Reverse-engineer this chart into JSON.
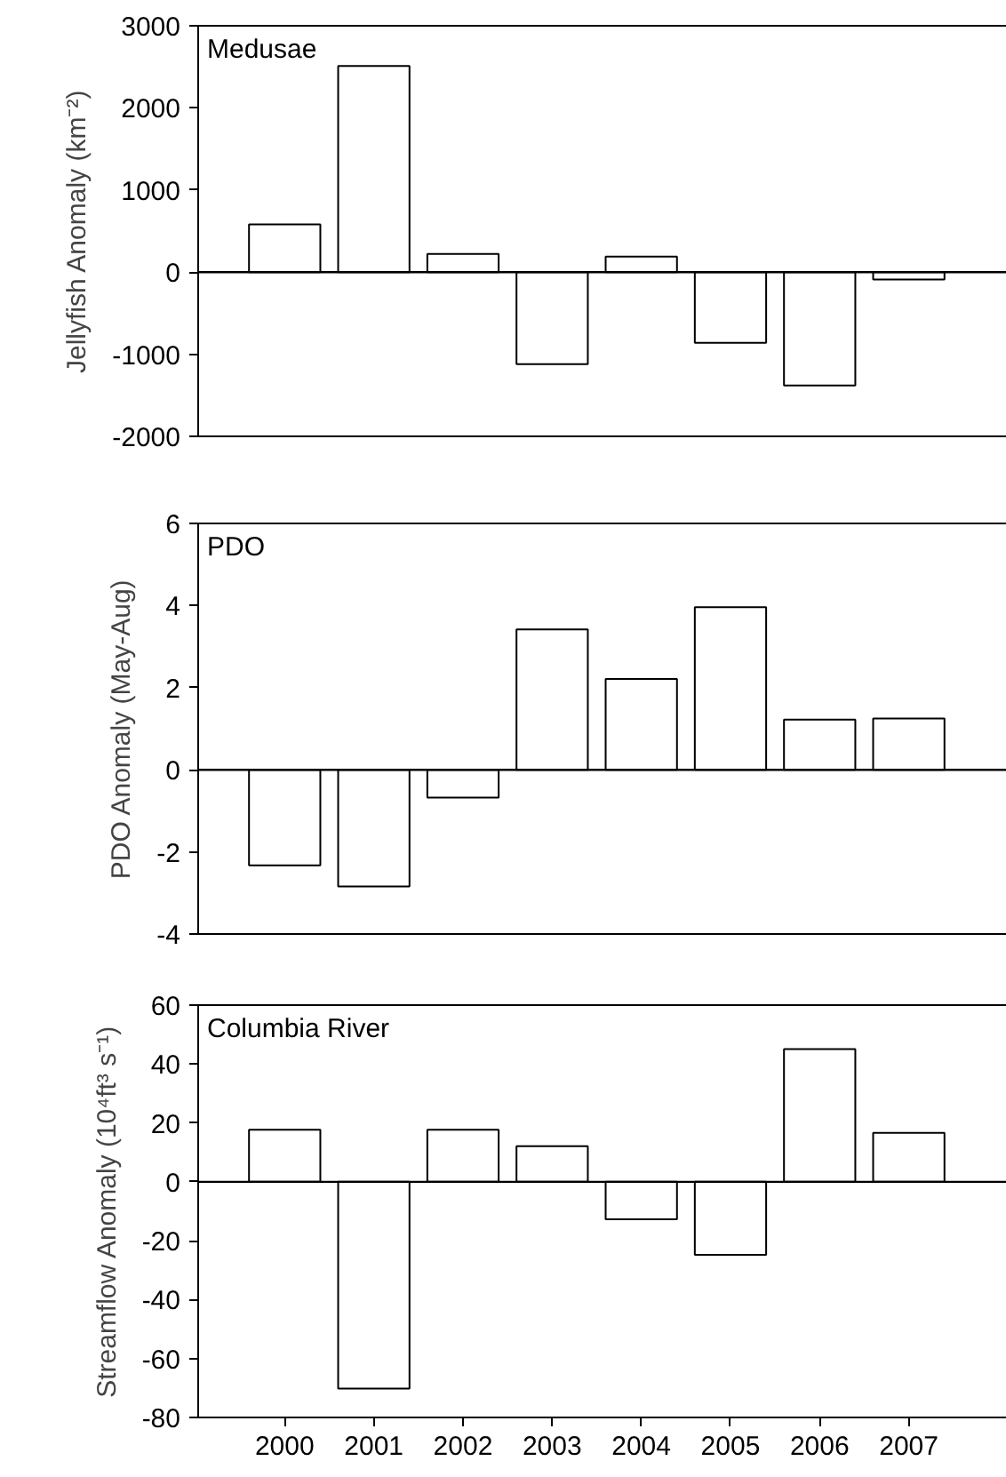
{
  "chart_data": [
    {
      "type": "bar",
      "title": "Medusae",
      "ylabel": "Jellyfish Anomaly (km⁻²)",
      "categories": [
        "2000",
        "2001",
        "2002",
        "2003",
        "2004",
        "2005",
        "2006",
        "2007"
      ],
      "values": [
        580,
        2510,
        220,
        -1120,
        190,
        -860,
        -1380,
        -90
      ],
      "color": "#ffffff",
      "ylim": [
        -2000,
        3000
      ],
      "yticks": [
        -2000,
        -1000,
        0,
        1000,
        2000,
        3000
      ],
      "tick_labels": "y",
      "grid": false,
      "ref_lines": [
        {
          "axis": "y",
          "value": 0
        }
      ]
    },
    {
      "type": "bar",
      "title": "PDO",
      "ylabel": "PDO Anomaly (May-Aug)",
      "categories": [
        "2000",
        "2001",
        "2002",
        "2003",
        "2004",
        "2005",
        "2006",
        "2007"
      ],
      "values": [
        -2.33,
        -2.84,
        -0.68,
        3.42,
        2.21,
        3.96,
        1.22,
        1.25
      ],
      "color": "#ffffff",
      "ylim": [
        -4,
        6
      ],
      "yticks": [
        -4,
        -2,
        0,
        2,
        4,
        6
      ],
      "tick_labels": "y",
      "grid": false,
      "ref_lines": [
        {
          "axis": "y",
          "value": 0
        }
      ]
    },
    {
      "type": "bar",
      "title": "Columbia River",
      "ylabel": "Streamflow Anomaly (10⁴ft³ s⁻¹)",
      "categories": [
        "2000",
        "2001",
        "2002",
        "2003",
        "2004",
        "2005",
        "2006",
        "2007"
      ],
      "values": [
        17.7,
        -70.2,
        17.7,
        12.1,
        -12.7,
        -24.8,
        45.1,
        16.6
      ],
      "color": "#ffffff",
      "ylim": [
        -80,
        60
      ],
      "yticks": [
        -80,
        -60,
        -40,
        -20,
        0,
        20,
        40,
        60
      ],
      "grid": false,
      "ref_lines": [
        {
          "axis": "y",
          "value": 0
        }
      ]
    }
  ]
}
